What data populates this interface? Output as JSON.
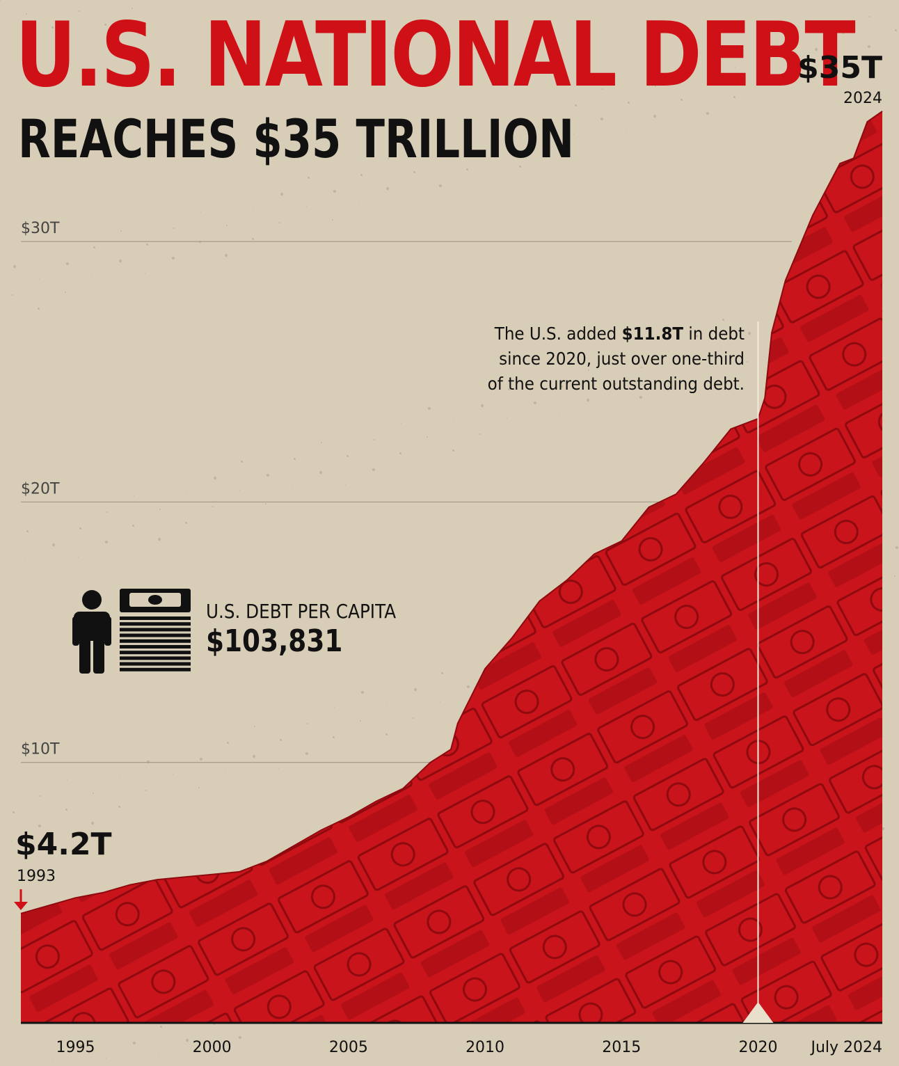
{
  "header": {
    "title": "U.S. NATIONAL DEBT",
    "subtitle": "REACHES $35 TRILLION"
  },
  "annotation": {
    "text_before": "The U.S. added ",
    "highlight": "$11.8T",
    "text_after": " in debt since 2020, just over one-third of the current outstanding debt."
  },
  "per_capita": {
    "label": "U.S. DEBT PER CAPITA",
    "value": "$103,831",
    "icons": [
      "person-icon",
      "money-stack-icon"
    ]
  },
  "colors": {
    "accent": "#cf1016",
    "area": "#c8141a",
    "background": "#d8cdb6",
    "text": "#111111"
  },
  "chart_data": {
    "type": "area",
    "title": "U.S. NATIONAL DEBT",
    "subtitle": "REACHES $35 TRILLION",
    "x_ticks": [
      "1995",
      "2000",
      "2005",
      "2010",
      "2015",
      "2020",
      "July 2024"
    ],
    "y_ticks": [
      "$10T",
      "$20T",
      "$30T"
    ],
    "ylim": [
      0,
      35
    ],
    "xlim": [
      1993,
      2024.55
    ],
    "grid": true,
    "series": [
      {
        "x": [
          1993,
          1994,
          1995,
          1996,
          1997,
          1998,
          1999,
          2000,
          2001,
          2002,
          2003,
          2004,
          2005,
          2006,
          2007,
          2008,
          2008.75,
          2009,
          2010,
          2011,
          2012,
          2013,
          2014,
          2015,
          2016,
          2017,
          2018,
          2019,
          2020,
          2020.25,
          2020.5,
          2021,
          2022,
          2023,
          2023.5,
          2024,
          2024.55
        ],
        "values": [
          4.2,
          4.5,
          4.8,
          5.0,
          5.3,
          5.5,
          5.6,
          5.7,
          5.8,
          6.2,
          6.8,
          7.4,
          7.9,
          8.5,
          9.0,
          10.0,
          10.5,
          11.5,
          13.6,
          14.8,
          16.2,
          17.0,
          18.0,
          18.5,
          19.8,
          20.3,
          21.5,
          22.8,
          23.2,
          24.0,
          26.5,
          28.5,
          31.0,
          33.0,
          33.2,
          34.6,
          35.0
        ]
      }
    ],
    "markers": [
      {
        "label": "$11.8T added since 2020",
        "x": 2020
      }
    ],
    "start": {
      "value_label": "$4.2T",
      "year_label": "1993"
    },
    "end": {
      "value_label": "$35T",
      "year_label": "2024"
    }
  }
}
